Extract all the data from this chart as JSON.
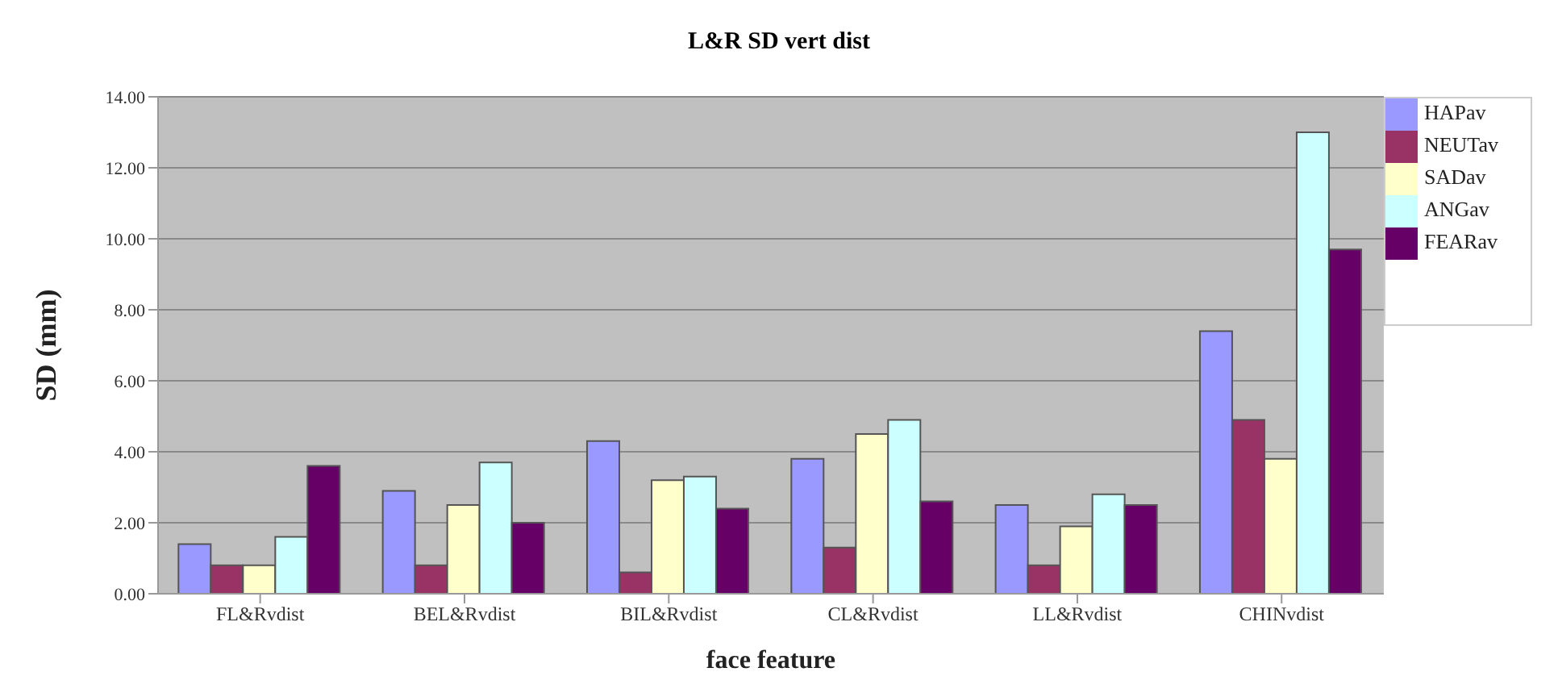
{
  "chart_data": {
    "type": "bar",
    "title": "L&R SD vert dist",
    "xlabel": "face feature",
    "ylabel": "SD (mm)",
    "categories": [
      "FL&Rvdist",
      "BEL&Rvdist",
      "BIL&Rvdist",
      "CL&Rvdist",
      "LL&Rvdist",
      "CHINvdist"
    ],
    "series": [
      {
        "name": "HAPav",
        "color": "#9999ff",
        "values": [
          1.4,
          2.9,
          4.3,
          3.8,
          2.5,
          7.4
        ]
      },
      {
        "name": "NEUTav",
        "color": "#993366",
        "values": [
          0.8,
          0.8,
          0.6,
          1.3,
          0.8,
          4.9
        ]
      },
      {
        "name": "SADav",
        "color": "#ffffcc",
        "values": [
          0.8,
          2.5,
          3.2,
          4.5,
          1.9,
          3.8
        ]
      },
      {
        "name": "ANGav",
        "color": "#ccffff",
        "values": [
          1.6,
          3.7,
          3.3,
          4.9,
          2.8,
          13.0
        ]
      },
      {
        "name": "FEARav",
        "color": "#660066",
        "values": [
          3.6,
          2.0,
          2.4,
          2.6,
          2.5,
          9.7
        ]
      }
    ],
    "ylim": [
      0,
      14
    ],
    "yticks": [
      {
        "value": 0,
        "label": "0.00"
      },
      {
        "value": 2,
        "label": "2.00"
      },
      {
        "value": 4,
        "label": "4.00"
      },
      {
        "value": 6,
        "label": "6.00"
      },
      {
        "value": 8,
        "label": "8.00"
      },
      {
        "value": 10,
        "label": "10.00"
      },
      {
        "value": 12,
        "label": "12.00"
      },
      {
        "value": 14,
        "label": "14.00"
      }
    ],
    "grid": "y",
    "legend": "top right"
  }
}
